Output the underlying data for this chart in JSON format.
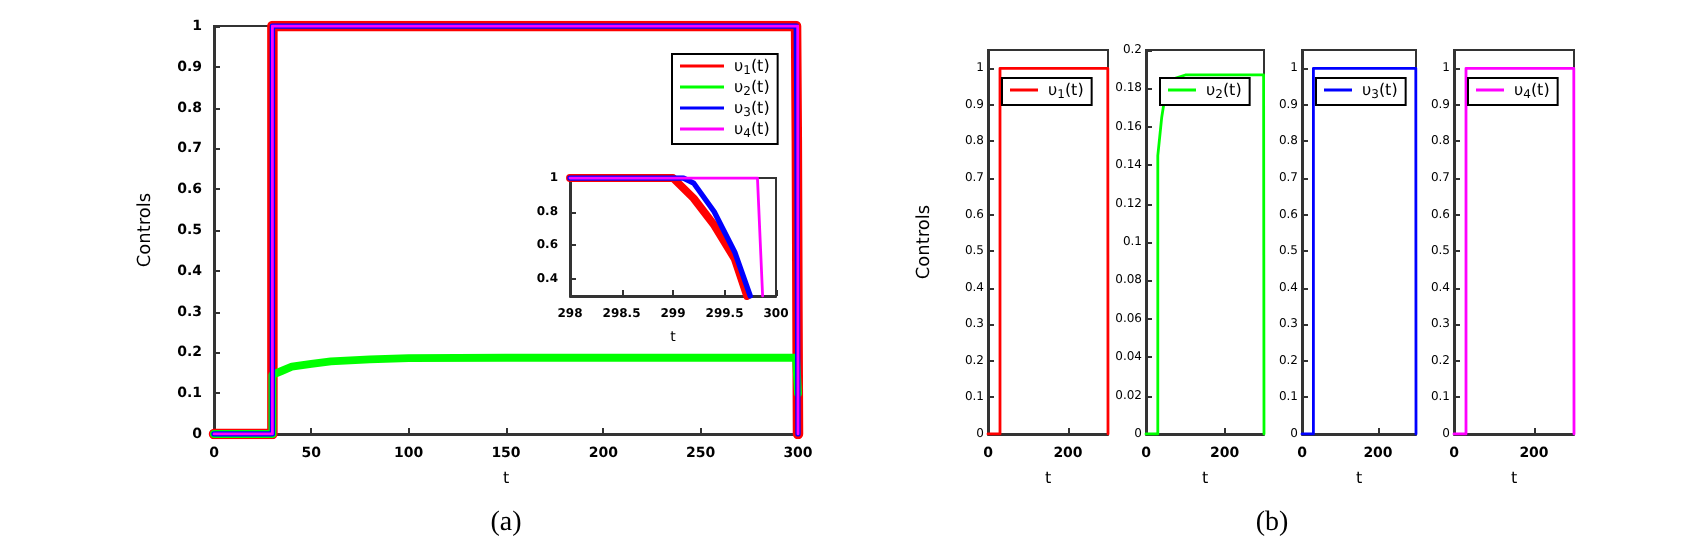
{
  "chart_data": [
    {
      "type": "line",
      "xlabel": "t",
      "ylabel": "Controls",
      "xlim": [
        0,
        300
      ],
      "ylim": [
        0,
        1
      ],
      "xticks": [
        0,
        50,
        100,
        150,
        200,
        250,
        300
      ],
      "yticks": [
        0,
        0.1,
        0.2,
        0.3,
        0.4,
        0.5,
        0.6,
        0.7,
        0.8,
        0.9,
        1
      ],
      "legend": "top right",
      "annotations": [
        "(a)"
      ],
      "series": [
        {
          "name": "υ$_{1}$(t)",
          "color": "#ff0000",
          "x": [
            0,
            30,
            30,
            299,
            299.4,
            299.72,
            300
          ],
          "values": [
            0,
            0,
            1,
            1,
            0.72,
            0.3,
            0
          ]
        },
        {
          "name": "υ$_{2}$(t)",
          "color": "#00ff00",
          "x": [
            0,
            30,
            30,
            35,
            40,
            50,
            60,
            80,
            100,
            150,
            200,
            250,
            299,
            300
          ],
          "values": [
            0,
            0,
            0.145,
            0.155,
            0.165,
            0.172,
            0.178,
            0.183,
            0.186,
            0.187,
            0.187,
            0.187,
            0.187,
            0.1
          ]
        },
        {
          "name": "υ$_{3}$(t)",
          "color": "#0000ff",
          "x": [
            0,
            30,
            30,
            299.1,
            299.4,
            299.75,
            300
          ],
          "values": [
            0,
            0,
            1,
            1,
            0.8,
            0.3,
            0
          ]
        },
        {
          "name": "υ$_{4}$(t)",
          "color": "#ff00ff",
          "x": [
            0,
            30,
            30,
            299.85,
            300
          ],
          "values": [
            0,
            0,
            1,
            1,
            0
          ]
        }
      ]
    },
    {
      "type": "line",
      "xlabel": "t",
      "xlim": [
        298,
        300
      ],
      "ylim": [
        0.3,
        1
      ],
      "xticks": [
        298,
        298.5,
        299,
        299.5,
        300
      ],
      "yticks": [
        0.4,
        0.6,
        0.8,
        1
      ],
      "series": [
        {
          "color": "#ff0000",
          "x": [
            298,
            299,
            299.2,
            299.4,
            299.6,
            299.72
          ],
          "values": [
            1,
            1,
            0.88,
            0.72,
            0.52,
            0.3
          ]
        },
        {
          "color": "#0000ff",
          "x": [
            298,
            299.1,
            299.2,
            299.4,
            299.6,
            299.75
          ],
          "values": [
            1,
            1,
            0.97,
            0.8,
            0.56,
            0.3
          ]
        },
        {
          "color": "#ff00ff",
          "x": [
            298,
            299.82,
            299.87
          ],
          "values": [
            1,
            1,
            0.3
          ]
        }
      ]
    },
    {
      "type": "line",
      "xlabel": "t",
      "ylabel": "Controls",
      "xlim": [
        0,
        300
      ],
      "ylim": [
        0,
        1.05
      ],
      "xticks": [
        0,
        200
      ],
      "yticks": [
        0,
        0.1,
        0.2,
        0.3,
        0.4,
        0.5,
        0.6,
        0.7,
        0.8,
        0.9,
        1
      ],
      "legend": "top",
      "series": [
        {
          "name": "υ$_{1}$(t)",
          "color": "#ff0000",
          "x": [
            0,
            30,
            30,
            299.5,
            300
          ],
          "values": [
            0,
            0,
            1,
            1,
            0
          ]
        }
      ]
    },
    {
      "type": "line",
      "xlabel": "t",
      "xlim": [
        0,
        300
      ],
      "ylim": [
        0,
        0.2
      ],
      "xticks": [
        0,
        200
      ],
      "yticks": [
        0,
        0.02,
        0.04,
        0.06,
        0.08,
        0.1,
        0.12,
        0.14,
        0.16,
        0.18,
        0.2
      ],
      "legend": "top",
      "annotations": [
        "(b)"
      ],
      "series": [
        {
          "name": "υ$_{2}$(t)",
          "color": "#00ff00",
          "x": [
            0,
            30,
            30,
            40,
            50,
            70,
            100,
            200,
            299,
            300
          ],
          "values": [
            0,
            0,
            0.145,
            0.165,
            0.178,
            0.185,
            0.187,
            0.187,
            0.187,
            0
          ]
        }
      ]
    },
    {
      "type": "line",
      "xlabel": "t",
      "xlim": [
        0,
        300
      ],
      "ylim": [
        0,
        1.05
      ],
      "xticks": [
        0,
        200
      ],
      "yticks": [
        0,
        0.1,
        0.2,
        0.3,
        0.4,
        0.5,
        0.6,
        0.7,
        0.8,
        0.9,
        1
      ],
      "legend": "top",
      "series": [
        {
          "name": "υ$_{3}$(t)",
          "color": "#0000ff",
          "x": [
            0,
            30,
            30,
            299.5,
            300
          ],
          "values": [
            0,
            0,
            1,
            1,
            0
          ]
        }
      ]
    },
    {
      "type": "line",
      "xlabel": "t",
      "xlim": [
        0,
        300
      ],
      "ylim": [
        0,
        1.05
      ],
      "xticks": [
        0,
        200
      ],
      "yticks": [
        0,
        0.1,
        0.2,
        0.3,
        0.4,
        0.5,
        0.6,
        0.7,
        0.8,
        0.9,
        1
      ],
      "legend": "top",
      "series": [
        {
          "name": "υ$_{4}$(t)",
          "color": "#ff00ff",
          "x": [
            0,
            30,
            30,
            299.5,
            300
          ],
          "values": [
            0,
            0,
            1,
            1,
            0
          ]
        }
      ]
    }
  ]
}
